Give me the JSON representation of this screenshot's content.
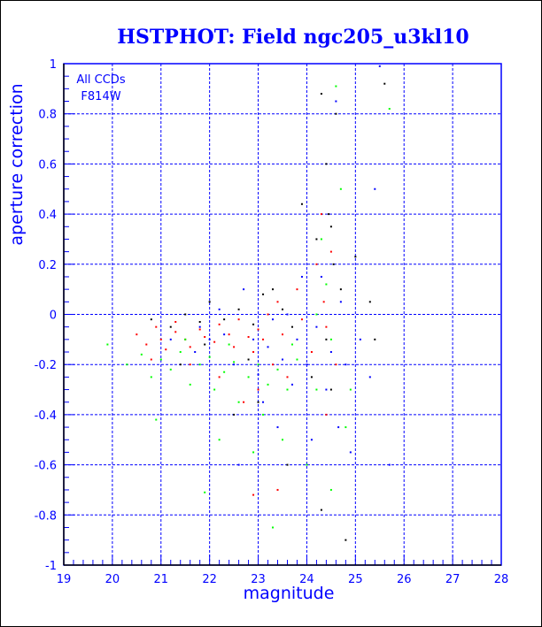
{
  "chart_data": {
    "type": "scatter",
    "title": "HSTPHOT: Field ngc205_u3kl10",
    "xlabel": "magnitude",
    "ylabel": "aperture correction",
    "xlim": [
      19,
      28
    ],
    "ylim": [
      -1,
      1
    ],
    "xticks": [
      "19",
      "20",
      "21",
      "22",
      "23",
      "24",
      "25",
      "26",
      "27",
      "28"
    ],
    "yticks": [
      "-1",
      "-0.8",
      "-0.6",
      "-0.4",
      "-0.2",
      "0",
      "0.2",
      "0.4",
      "0.6",
      "0.8",
      "1"
    ],
    "grid": true,
    "annotations": [
      "All CCDs",
      "F814W"
    ],
    "series": [
      {
        "name": "black",
        "color": "#000000",
        "points": [
          [
            20.8,
            -0.02
          ],
          [
            21.2,
            -0.05
          ],
          [
            21.5,
            0.0
          ],
          [
            21.8,
            -0.03
          ],
          [
            22.0,
            0.05
          ],
          [
            22.3,
            -0.02
          ],
          [
            22.6,
            0.02
          ],
          [
            22.9,
            -0.04
          ],
          [
            23.1,
            0.08
          ],
          [
            23.3,
            0.1
          ],
          [
            23.5,
            0.02
          ],
          [
            23.7,
            -0.05
          ],
          [
            23.9,
            0.44
          ],
          [
            24.2,
            0.3
          ],
          [
            24.3,
            0.88
          ],
          [
            24.4,
            0.6
          ],
          [
            24.45,
            0.4
          ],
          [
            24.5,
            0.35
          ],
          [
            24.55,
            0.2
          ],
          [
            24.6,
            0.8
          ],
          [
            24.4,
            -0.1
          ],
          [
            24.5,
            -0.3
          ],
          [
            24.3,
            -0.78
          ],
          [
            23.0,
            -0.35
          ],
          [
            22.5,
            -0.4
          ],
          [
            25.0,
            0.23
          ],
          [
            25.3,
            0.05
          ],
          [
            25.6,
            0.92
          ],
          [
            25.4,
            -0.1
          ],
          [
            24.8,
            -0.9
          ],
          [
            21.9,
            -0.12
          ],
          [
            22.8,
            -0.18
          ],
          [
            23.6,
            -0.6
          ],
          [
            24.1,
            -0.25
          ],
          [
            24.7,
            0.1
          ],
          [
            21.4,
            -0.2
          ]
        ]
      },
      {
        "name": "red",
        "color": "#ff0000",
        "points": [
          [
            20.5,
            -0.08
          ],
          [
            20.7,
            -0.12
          ],
          [
            20.9,
            -0.05
          ],
          [
            21.0,
            -0.1
          ],
          [
            21.1,
            -0.14
          ],
          [
            21.3,
            -0.07
          ],
          [
            21.5,
            -0.1
          ],
          [
            21.6,
            -0.13
          ],
          [
            21.8,
            -0.06
          ],
          [
            21.9,
            -0.09
          ],
          [
            22.1,
            -0.11
          ],
          [
            22.2,
            -0.04
          ],
          [
            22.4,
            -0.08
          ],
          [
            22.5,
            -0.13
          ],
          [
            22.6,
            -0.02
          ],
          [
            22.8,
            -0.09
          ],
          [
            22.9,
            -0.15
          ],
          [
            23.0,
            -0.06
          ],
          [
            23.1,
            -0.1
          ],
          [
            23.2,
            0.0
          ],
          [
            23.3,
            -0.2
          ],
          [
            23.4,
            0.05
          ],
          [
            23.5,
            -0.08
          ],
          [
            23.6,
            -0.25
          ],
          [
            23.8,
            0.1
          ],
          [
            24.2,
            0.2
          ],
          [
            24.3,
            0.4
          ],
          [
            24.35,
            0.05
          ],
          [
            24.4,
            -0.05
          ],
          [
            24.5,
            0.25
          ],
          [
            24.6,
            -0.2
          ],
          [
            24.4,
            -0.4
          ],
          [
            23.0,
            -0.3
          ],
          [
            22.7,
            -0.35
          ],
          [
            22.2,
            -0.25
          ],
          [
            21.6,
            -0.2
          ],
          [
            23.4,
            -0.7
          ],
          [
            22.9,
            -0.72
          ],
          [
            24.1,
            -0.15
          ],
          [
            23.9,
            -0.02
          ],
          [
            21.3,
            -0.03
          ],
          [
            20.8,
            -0.18
          ]
        ]
      },
      {
        "name": "green",
        "color": "#00ff00",
        "points": [
          [
            19.9,
            -0.12
          ],
          [
            20.3,
            -0.2
          ],
          [
            20.6,
            -0.16
          ],
          [
            20.8,
            -0.25
          ],
          [
            21.0,
            -0.18
          ],
          [
            21.2,
            -0.22
          ],
          [
            21.4,
            -0.15
          ],
          [
            21.6,
            -0.28
          ],
          [
            21.8,
            -0.2
          ],
          [
            22.0,
            -0.17
          ],
          [
            22.1,
            -0.3
          ],
          [
            22.3,
            -0.23
          ],
          [
            22.5,
            -0.19
          ],
          [
            22.6,
            -0.35
          ],
          [
            22.8,
            -0.25
          ],
          [
            23.0,
            -0.2
          ],
          [
            23.1,
            -0.4
          ],
          [
            23.2,
            -0.28
          ],
          [
            23.4,
            -0.22
          ],
          [
            23.5,
            -0.5
          ],
          [
            23.6,
            -0.3
          ],
          [
            23.8,
            -0.18
          ],
          [
            24.0,
            -0.6
          ],
          [
            24.2,
            0.0
          ],
          [
            24.3,
            0.3
          ],
          [
            24.4,
            0.12
          ],
          [
            24.5,
            -0.1
          ],
          [
            24.6,
            0.91
          ],
          [
            24.7,
            0.5
          ],
          [
            24.8,
            -0.45
          ],
          [
            24.9,
            -0.3
          ],
          [
            25.7,
            0.82
          ],
          [
            22.2,
            -0.5
          ],
          [
            21.9,
            -0.71
          ],
          [
            23.3,
            -0.85
          ],
          [
            24.5,
            -0.7
          ],
          [
            20.9,
            -0.42
          ],
          [
            22.9,
            -0.55
          ],
          [
            24.2,
            -0.3
          ],
          [
            23.7,
            -0.12
          ],
          [
            21.5,
            -0.1
          ],
          [
            22.4,
            -0.12
          ]
        ]
      },
      {
        "name": "blue",
        "color": "#0000ff",
        "points": [
          [
            21.2,
            -0.1
          ],
          [
            21.7,
            -0.15
          ],
          [
            22.0,
            -0.1
          ],
          [
            22.3,
            -0.08
          ],
          [
            22.5,
            -0.2
          ],
          [
            22.7,
            0.1
          ],
          [
            22.9,
            -0.1
          ],
          [
            23.0,
            -0.24
          ],
          [
            23.2,
            -0.13
          ],
          [
            23.3,
            -0.02
          ],
          [
            23.5,
            -0.18
          ],
          [
            23.6,
            0.0
          ],
          [
            23.7,
            -0.28
          ],
          [
            23.8,
            -0.1
          ],
          [
            24.0,
            -0.2
          ],
          [
            24.2,
            -0.05
          ],
          [
            24.3,
            0.15
          ],
          [
            24.4,
            -0.3
          ],
          [
            24.5,
            -0.15
          ],
          [
            24.6,
            0.85
          ],
          [
            24.65,
            -0.45
          ],
          [
            24.7,
            0.05
          ],
          [
            24.8,
            -0.2
          ],
          [
            25.1,
            -0.1
          ],
          [
            25.3,
            -0.25
          ],
          [
            25.4,
            0.5
          ],
          [
            25.5,
            0.99
          ],
          [
            25.7,
            -0.6
          ],
          [
            23.4,
            -0.45
          ],
          [
            22.6,
            -0.6
          ],
          [
            24.1,
            -0.5
          ],
          [
            23.1,
            -0.35
          ],
          [
            22.2,
            0.02
          ],
          [
            23.9,
            0.15
          ],
          [
            24.9,
            -0.55
          ],
          [
            21.8,
            -0.05
          ]
        ]
      }
    ]
  }
}
